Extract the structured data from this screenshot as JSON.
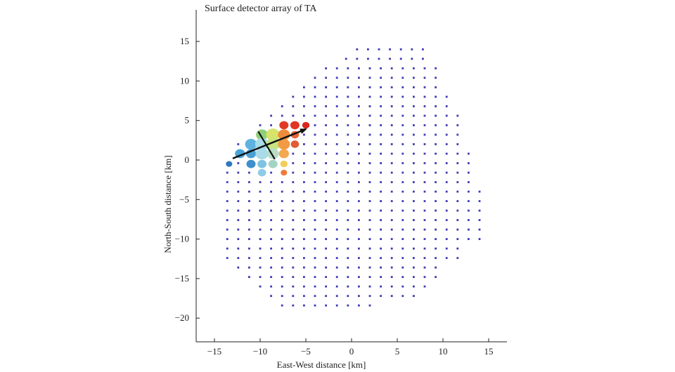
{
  "chart_data": {
    "type": "scatter",
    "title": "Surface detector array of TA",
    "xlabel": "East-West distance [km]",
    "ylabel": "North-South distance [km]",
    "xlim": [
      -17,
      17
    ],
    "ylim": [
      -23,
      19
    ],
    "xticks": [
      -15,
      -10,
      -5,
      0,
      5,
      10,
      15
    ],
    "yticks": [
      -20,
      -15,
      -10,
      -5,
      0,
      5,
      10,
      15
    ],
    "grid": false,
    "colors": {
      "detector": "#3b3bb5",
      "axis": "#222222",
      "arrow": "#111111"
    },
    "detector_grid": {
      "spacing_km": 1.2,
      "rows": [
        {
          "y": 14.0,
          "x_from": 0.6,
          "x_to": 7.8
        },
        {
          "y": 12.8,
          "x_from": -0.6,
          "x_to": 7.8
        },
        {
          "y": 11.6,
          "x_from": -2.8,
          "x_to": 9.0
        },
        {
          "y": 10.4,
          "x_from": -4.0,
          "x_to": 9.0
        },
        {
          "y": 9.2,
          "x_from": -5.2,
          "x_to": 9.0
        },
        {
          "y": 8.0,
          "x_from": -6.4,
          "x_to": 10.2
        },
        {
          "y": 6.8,
          "x_from": -7.6,
          "x_to": 10.2
        },
        {
          "y": 5.6,
          "x_from": -8.8,
          "x_to": 11.4
        },
        {
          "y": 4.4,
          "x_from": -10.0,
          "x_to": 11.4
        },
        {
          "y": 3.2,
          "x_from": -10.0,
          "x_to": 11.4
        },
        {
          "y": 2.0,
          "x_from": -12.4,
          "x_to": 11.4
        },
        {
          "y": 0.8,
          "x_from": -12.4,
          "x_to": 12.6
        },
        {
          "y": -0.4,
          "x_from": -13.6,
          "x_to": 12.6
        },
        {
          "y": -1.6,
          "x_from": -13.6,
          "x_to": 12.6
        },
        {
          "y": -2.8,
          "x_from": -13.6,
          "x_to": 12.6
        },
        {
          "y": -4.0,
          "x_from": -13.6,
          "x_to": 13.8
        },
        {
          "y": -5.2,
          "x_from": -13.6,
          "x_to": 13.8
        },
        {
          "y": -6.4,
          "x_from": -13.6,
          "x_to": 13.8
        },
        {
          "y": -7.6,
          "x_from": -13.6,
          "x_to": 13.8
        },
        {
          "y": -8.8,
          "x_from": -13.6,
          "x_to": 13.8
        },
        {
          "y": -10.0,
          "x_from": -13.6,
          "x_to": 13.8
        },
        {
          "y": -11.2,
          "x_from": -13.6,
          "x_to": 11.4
        },
        {
          "y": -12.4,
          "x_from": -13.6,
          "x_to": 11.4
        },
        {
          "y": -13.6,
          "x_from": -12.4,
          "x_to": 9.0
        },
        {
          "y": -14.8,
          "x_from": -11.2,
          "x_to": 9.0
        },
        {
          "y": -16.0,
          "x_from": -10.0,
          "x_to": 7.8
        },
        {
          "y": -17.2,
          "x_from": -8.8,
          "x_to": 6.6
        },
        {
          "y": -18.4,
          "x_from": -7.6,
          "x_to": 1.8
        }
      ]
    },
    "hit_detectors": [
      {
        "x": -13.4,
        "y": -0.5,
        "size": 0.35,
        "color": "#2e7bbf"
      },
      {
        "x": -12.2,
        "y": 0.8,
        "size": 0.55,
        "color": "#4aa3d8"
      },
      {
        "x": -11.0,
        "y": 2.0,
        "size": 0.65,
        "color": "#5fb2e0"
      },
      {
        "x": -11.0,
        "y": 0.8,
        "size": 0.55,
        "color": "#4a9fd4"
      },
      {
        "x": -11.0,
        "y": -0.5,
        "size": 0.5,
        "color": "#3e8fcb"
      },
      {
        "x": -9.8,
        "y": 3.2,
        "size": 0.65,
        "color": "#8fcf7a"
      },
      {
        "x": -9.8,
        "y": 2.0,
        "size": 0.75,
        "color": "#a7dce8"
      },
      {
        "x": -9.8,
        "y": 0.8,
        "size": 0.7,
        "color": "#a9dbe8"
      },
      {
        "x": -9.8,
        "y": -0.5,
        "size": 0.5,
        "color": "#7fc3e3"
      },
      {
        "x": -9.8,
        "y": -1.6,
        "size": 0.45,
        "color": "#8ecbe6"
      },
      {
        "x": -8.6,
        "y": 3.2,
        "size": 0.75,
        "color": "#d7e36a"
      },
      {
        "x": -8.6,
        "y": 2.0,
        "size": 0.75,
        "color": "#c9e37e"
      },
      {
        "x": -8.6,
        "y": 0.8,
        "size": 0.65,
        "color": "#b9dcc7"
      },
      {
        "x": -8.6,
        "y": -0.5,
        "size": 0.5,
        "color": "#a3d3c4"
      },
      {
        "x": -7.4,
        "y": 4.4,
        "size": 0.5,
        "color": "#e03a25"
      },
      {
        "x": -7.4,
        "y": 3.2,
        "size": 0.65,
        "color": "#ef8c3c"
      },
      {
        "x": -7.4,
        "y": 2.0,
        "size": 0.65,
        "color": "#f29a45"
      },
      {
        "x": -7.4,
        "y": 0.8,
        "size": 0.55,
        "color": "#f4a84f"
      },
      {
        "x": -7.4,
        "y": -0.5,
        "size": 0.4,
        "color": "#f2cd5b"
      },
      {
        "x": -7.4,
        "y": -1.6,
        "size": 0.35,
        "color": "#ec7a3a"
      },
      {
        "x": -6.2,
        "y": 4.4,
        "size": 0.5,
        "color": "#e23323"
      },
      {
        "x": -6.2,
        "y": 3.2,
        "size": 0.45,
        "color": "#e8643a"
      },
      {
        "x": -6.2,
        "y": 2.0,
        "size": 0.45,
        "color": "#e25b34"
      },
      {
        "x": -5.0,
        "y": 4.4,
        "size": 0.4,
        "color": "#d9261c"
      }
    ],
    "shower_axis_arrow": {
      "from": [
        -13.0,
        0.2
      ],
      "to": [
        -5.0,
        3.9
      ]
    },
    "shower_front_line": {
      "from": [
        -10.2,
        3.6
      ],
      "to": [
        -8.4,
        0.1
      ]
    }
  }
}
